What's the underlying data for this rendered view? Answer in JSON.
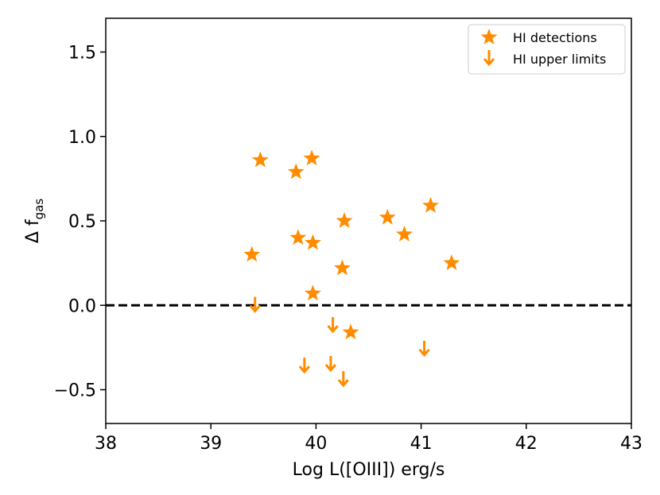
{
  "chart_data": {
    "type": "scatter",
    "title": "",
    "xlabel": "Log L([OIII]) erg/s",
    "ylabel": {
      "symbol": "Δ f",
      "subscript": "gas"
    },
    "xlim": [
      38,
      43
    ],
    "ylim": [
      -0.7,
      1.7
    ],
    "xticks": [
      38,
      39,
      40,
      41,
      42,
      43
    ],
    "xtick_labels": [
      "38",
      "39",
      "40",
      "41",
      "42",
      "43"
    ],
    "yticks": [
      -0.5,
      0.0,
      0.5,
      1.0,
      1.5
    ],
    "ytick_labels": [
      "−0.5",
      "0.0",
      "0.5",
      "1.0",
      "1.5"
    ],
    "grid": false,
    "reference_line": {
      "y": 0.0,
      "style": "dashed",
      "color": "#000000"
    },
    "legend": {
      "position": "top-right",
      "entries": [
        "HI detections",
        "HI upper limits"
      ]
    },
    "series": [
      {
        "name": "HI detections",
        "marker": "star",
        "color": "#ff8c00",
        "points": [
          {
            "x": 39.47,
            "y": 0.86
          },
          {
            "x": 39.81,
            "y": 0.79
          },
          {
            "x": 39.96,
            "y": 0.87
          },
          {
            "x": 39.39,
            "y": 0.3
          },
          {
            "x": 39.83,
            "y": 0.4
          },
          {
            "x": 39.97,
            "y": 0.37
          },
          {
            "x": 40.27,
            "y": 0.5
          },
          {
            "x": 40.25,
            "y": 0.22
          },
          {
            "x": 39.97,
            "y": 0.07
          },
          {
            "x": 40.33,
            "y": -0.16
          },
          {
            "x": 40.68,
            "y": 0.52
          },
          {
            "x": 40.84,
            "y": 0.42
          },
          {
            "x": 41.09,
            "y": 0.59
          },
          {
            "x": 41.29,
            "y": 0.25
          }
        ]
      },
      {
        "name": "HI upper limits",
        "marker": "down-arrow",
        "color": "#ff8c00",
        "points": [
          {
            "x": 39.42,
            "y": -0.03
          },
          {
            "x": 40.16,
            "y": -0.15
          },
          {
            "x": 39.89,
            "y": -0.39
          },
          {
            "x": 40.14,
            "y": -0.38
          },
          {
            "x": 40.26,
            "y": -0.47
          },
          {
            "x": 41.03,
            "y": -0.29
          }
        ]
      }
    ]
  }
}
